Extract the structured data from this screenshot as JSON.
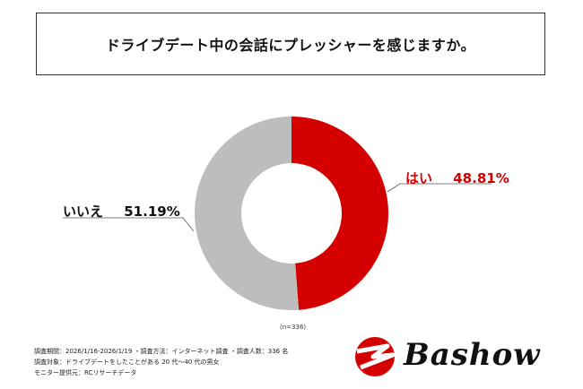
{
  "title": "ドライブデート中の会話にプレッシャーを感じますか。",
  "chart_data": {
    "type": "pie",
    "categories": [
      "はい",
      "いいえ"
    ],
    "values": [
      48.81,
      51.19
    ],
    "value_labels": [
      "48.81%",
      "51.19%"
    ],
    "colors": [
      "#d40000",
      "#bdbdbd"
    ],
    "donut": true,
    "n_note": "(n=336)"
  },
  "footer": {
    "line1": "調査期間：2026/1/16-2026/1/19 ・調査方法：インターネット調査 ・調査人数：336 名",
    "line2": "調査対象：ドライブデートをしたことがある 20 代～40 代の男女",
    "line3": "モニター提供元：RCリサーチデータ"
  },
  "logo": {
    "text": "Bashow"
  }
}
